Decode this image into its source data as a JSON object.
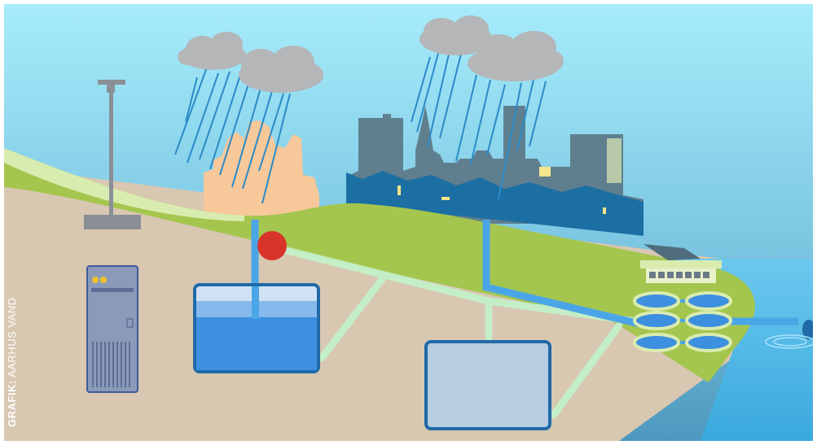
{
  "credit": {
    "label": "GRAFIK:",
    "source": "AARHUS VAND"
  },
  "colors": {
    "sky_top": "#9fe6f8",
    "sky_bottom": "#4fa3c8",
    "ground": "#d8c7b1",
    "grass": "#a4c64e",
    "grass_light": "#d9ecb0",
    "pipe_light": "#c4eec6",
    "pipe_blue": "#4aa6e6",
    "tank_border": "#1f6aa7",
    "tank_water": "#3d8fe0",
    "tank_empty": "#b8cde0",
    "city_dark": "#5c7a8a",
    "city_blue": "#1c6fa3",
    "valve_red": "#d9342a",
    "cloud": "#b4b6b8",
    "rain": "#2a8bc8",
    "sea": "#4cb4e3",
    "server": "#8a9ab8"
  },
  "icons": [
    "cloud-icon",
    "rain-icon",
    "server-cabinet-icon",
    "street-lamp-icon",
    "valve-icon",
    "treatment-plant-icon"
  ]
}
